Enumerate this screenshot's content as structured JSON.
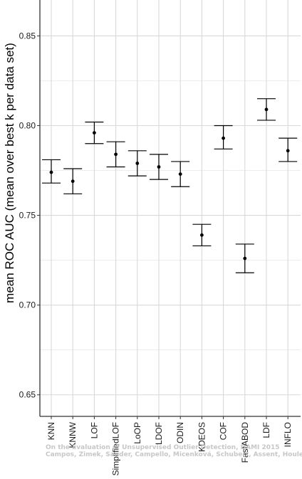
{
  "chart_data": {
    "type": "scatter",
    "subtype": "point-with-error-bars",
    "ylabel": "mean ROC AUC (mean over best k per data set)",
    "xlabel": "",
    "ylim": [
      0.638,
      0.87
    ],
    "yticks": [
      0.65,
      0.7,
      0.75,
      0.8,
      0.85
    ],
    "ytick_labels": [
      "0.65",
      "0.70",
      "0.75",
      "0.80",
      "0.85"
    ],
    "grid": true,
    "categories": [
      "KNN",
      "KNNW",
      "LOF",
      "SimplifiedLOF",
      "LoOP",
      "LDOF",
      "ODIN",
      "KDEOS",
      "COF",
      "FastABOD",
      "LDF",
      "INFLO"
    ],
    "series": [
      {
        "values": [
          0.774,
          0.769,
          0.796,
          0.784,
          0.779,
          0.777,
          0.773,
          0.739,
          0.793,
          0.726,
          0.809,
          0.786
        ],
        "lower": [
          0.768,
          0.762,
          0.79,
          0.777,
          0.772,
          0.77,
          0.766,
          0.733,
          0.787,
          0.718,
          0.803,
          0.78
        ],
        "upper": [
          0.781,
          0.776,
          0.802,
          0.791,
          0.786,
          0.784,
          0.78,
          0.745,
          0.8,
          0.734,
          0.815,
          0.793
        ]
      }
    ],
    "colors": {
      "point": "#000000",
      "grid": "#d9d9d9",
      "background": "#ffffff",
      "axis": "#333333"
    }
  },
  "watermark": {
    "line1": "On the Evaluation of Unsupervised Outlier Detection, DAMI 2015",
    "line2": "Campos, Zimek, Sander, Campello, Micenková, Schubert, Assent, Houle"
  }
}
